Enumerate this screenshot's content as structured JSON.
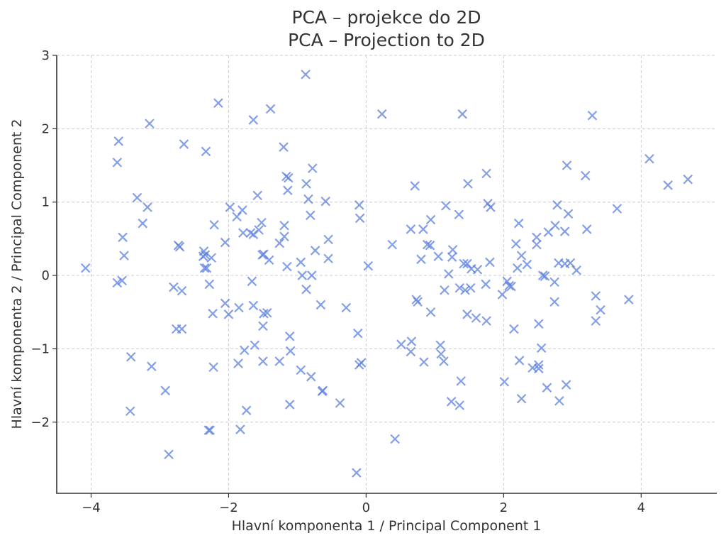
{
  "chart_data": {
    "type": "scatter",
    "title": "PCA – projekce do 2D",
    "subtitle": "PCA – Projection to 2D",
    "xlabel": "Hlavní komponenta 1 / Principal Component 1",
    "ylabel": "Hlavní komponenta 2 / Principal Component 2",
    "xlim": [
      -4.5,
      5.1
    ],
    "ylim": [
      -2.97,
      3.0
    ],
    "xticks": [
      -4,
      -2,
      0,
      2,
      4
    ],
    "yticks": [
      -2,
      -1,
      0,
      1,
      2,
      3
    ],
    "grid": true,
    "marker": "x",
    "color": "#5b7fde",
    "points": [
      [
        -4.08,
        0.1
      ],
      [
        -3.6,
        1.83
      ],
      [
        -3.62,
        1.54
      ],
      [
        -3.54,
        0.52
      ],
      [
        -3.52,
        0.27
      ],
      [
        -3.62,
        -0.1
      ],
      [
        -3.55,
        -0.07
      ],
      [
        -3.33,
        1.06
      ],
      [
        -3.25,
        0.71
      ],
      [
        -3.18,
        0.93
      ],
      [
        -3.15,
        2.07
      ],
      [
        -3.42,
        -1.11
      ],
      [
        -3.12,
        -1.24
      ],
      [
        -3.43,
        -1.85
      ],
      [
        -2.92,
        -1.57
      ],
      [
        -2.87,
        -2.44
      ],
      [
        -2.8,
        -0.16
      ],
      [
        -2.76,
        -0.73
      ],
      [
        -2.73,
        0.41
      ],
      [
        -2.71,
        0.39
      ],
      [
        -2.68,
        -0.21
      ],
      [
        -2.68,
        -0.73
      ],
      [
        -2.65,
        1.79
      ],
      [
        -2.33,
        1.69
      ],
      [
        -2.36,
        0.33
      ],
      [
        -2.34,
        0.28
      ],
      [
        -2.37,
        0.26
      ],
      [
        -2.35,
        0.1
      ],
      [
        -2.32,
        0.1
      ],
      [
        -2.25,
        0.24
      ],
      [
        -2.28,
        -0.12
      ],
      [
        -2.21,
        0.69
      ],
      [
        -2.23,
        -0.52
      ],
      [
        -2.22,
        -1.25
      ],
      [
        -2.29,
        -2.11
      ],
      [
        -2.27,
        -2.11
      ],
      [
        -2.15,
        2.35
      ],
      [
        -2.05,
        0.45
      ],
      [
        -2.05,
        -0.38
      ],
      [
        -2.0,
        -0.53
      ],
      [
        -1.98,
        0.93
      ],
      [
        -1.88,
        0.8
      ],
      [
        -1.85,
        -0.44
      ],
      [
        -1.86,
        -1.2
      ],
      [
        -1.83,
        -2.1
      ],
      [
        -1.8,
        0.89
      ],
      [
        -1.79,
        0.58
      ],
      [
        -1.77,
        -1.02
      ],
      [
        -1.74,
        -1.84
      ],
      [
        -1.68,
        0.58
      ],
      [
        -1.66,
        -0.08
      ],
      [
        -1.64,
        2.12
      ],
      [
        -1.64,
        0.56
      ],
      [
        -1.64,
        -0.41
      ],
      [
        -1.62,
        -0.95
      ],
      [
        -1.58,
        1.09
      ],
      [
        -1.56,
        0.62
      ],
      [
        -1.52,
        0.72
      ],
      [
        -1.51,
        0.28
      ],
      [
        -1.49,
        0.29
      ],
      [
        -1.5,
        -0.69
      ],
      [
        -1.49,
        -0.52
      ],
      [
        -1.44,
        -0.51
      ],
      [
        -1.5,
        -1.17
      ],
      [
        -1.41,
        0.21
      ],
      [
        -1.39,
        2.27
      ],
      [
        -1.26,
        0.44
      ],
      [
        -1.26,
        -1.17
      ],
      [
        -1.2,
        1.75
      ],
      [
        -1.19,
        0.68
      ],
      [
        -1.19,
        0.53
      ],
      [
        -1.16,
        1.35
      ],
      [
        -1.13,
        1.33
      ],
      [
        -1.14,
        1.16
      ],
      [
        -1.15,
        0.12
      ],
      [
        -1.11,
        -0.83
      ],
      [
        -1.1,
        -1.03
      ],
      [
        -1.11,
        -1.76
      ],
      [
        -0.95,
        0.18
      ],
      [
        -0.93,
        0.0
      ],
      [
        -0.95,
        -1.29
      ],
      [
        -0.88,
        2.74
      ],
      [
        -0.87,
        1.25
      ],
      [
        -0.87,
        -0.19
      ],
      [
        -0.84,
        1.04
      ],
      [
        -0.81,
        0.82
      ],
      [
        -0.78,
        1.46
      ],
      [
        -0.79,
        0.0
      ],
      [
        -0.8,
        -1.38
      ],
      [
        -0.74,
        0.34
      ],
      [
        -0.66,
        -0.4
      ],
      [
        -0.64,
        -1.58
      ],
      [
        -0.63,
        -1.57
      ],
      [
        -0.59,
        1.01
      ],
      [
        -0.55,
        0.49
      ],
      [
        -0.55,
        0.23
      ],
      [
        -0.38,
        -1.74
      ],
      [
        -0.29,
        -0.44
      ],
      [
        -0.14,
        -2.69
      ],
      [
        -0.12,
        -0.79
      ],
      [
        -0.1,
        0.96
      ],
      [
        -0.09,
        0.78
      ],
      [
        -0.1,
        -1.22
      ],
      [
        -0.07,
        -1.19
      ],
      [
        0.03,
        0.13
      ],
      [
        0.23,
        2.2
      ],
      [
        0.38,
        0.42
      ],
      [
        0.42,
        -2.23
      ],
      [
        0.51,
        -0.94
      ],
      [
        0.65,
        -1.04
      ],
      [
        0.65,
        0.63
      ],
      [
        0.66,
        -0.9
      ],
      [
        0.71,
        1.22
      ],
      [
        0.73,
        -0.33
      ],
      [
        0.75,
        -0.36
      ],
      [
        0.8,
        0.22
      ],
      [
        0.83,
        0.63
      ],
      [
        0.84,
        -1.18
      ],
      [
        0.89,
        0.42
      ],
      [
        0.93,
        0.41
      ],
      [
        0.94,
        0.76
      ],
      [
        0.94,
        -0.5
      ],
      [
        1.05,
        0.26
      ],
      [
        1.08,
        -0.95
      ],
      [
        1.09,
        -1.07
      ],
      [
        1.13,
        -1.17
      ],
      [
        1.14,
        -0.2
      ],
      [
        1.16,
        0.95
      ],
      [
        1.2,
        0.02
      ],
      [
        1.25,
        0.25
      ],
      [
        1.26,
        0.35
      ],
      [
        1.24,
        -1.72
      ],
      [
        1.36,
        -1.77
      ],
      [
        1.35,
        0.83
      ],
      [
        1.36,
        -0.17
      ],
      [
        1.38,
        -1.44
      ],
      [
        1.4,
        2.2
      ],
      [
        1.42,
        0.16
      ],
      [
        1.44,
        -0.2
      ],
      [
        1.47,
        0.16
      ],
      [
        1.47,
        -0.53
      ],
      [
        1.48,
        1.25
      ],
      [
        1.52,
        -0.17
      ],
      [
        1.53,
        0.09
      ],
      [
        1.6,
        -0.58
      ],
      [
        1.62,
        0.08
      ],
      [
        1.74,
        -0.12
      ],
      [
        1.75,
        -0.62
      ],
      [
        1.75,
        1.39
      ],
      [
        1.77,
        0.98
      ],
      [
        1.81,
        0.93
      ],
      [
        1.8,
        0.18
      ],
      [
        1.98,
        -0.26
      ],
      [
        2.01,
        -1.45
      ],
      [
        2.05,
        -0.08
      ],
      [
        2.08,
        -0.14
      ],
      [
        2.11,
        -0.15
      ],
      [
        2.15,
        -0.73
      ],
      [
        2.18,
        0.43
      ],
      [
        2.2,
        0.1
      ],
      [
        2.22,
        0.71
      ],
      [
        2.23,
        -1.16
      ],
      [
        2.26,
        -1.68
      ],
      [
        2.26,
        0.27
      ],
      [
        2.34,
        0.15
      ],
      [
        2.42,
        -1.26
      ],
      [
        2.48,
        0.52
      ],
      [
        2.48,
        0.42
      ],
      [
        2.51,
        -1.22
      ],
      [
        2.51,
        -1.27
      ],
      [
        2.51,
        -0.66
      ],
      [
        2.55,
        -0.99
      ],
      [
        2.57,
        0.0
      ],
      [
        2.6,
        -0.01
      ],
      [
        2.63,
        -1.53
      ],
      [
        2.65,
        0.59
      ],
      [
        2.74,
        -0.09
      ],
      [
        2.74,
        -0.36
      ],
      [
        2.75,
        0.68
      ],
      [
        2.78,
        0.96
      ],
      [
        2.8,
        0.17
      ],
      [
        2.81,
        -1.71
      ],
      [
        2.89,
        0.6
      ],
      [
        2.89,
        0.16
      ],
      [
        2.91,
        -1.49
      ],
      [
        2.92,
        1.5
      ],
      [
        2.94,
        0.84
      ],
      [
        2.97,
        0.17
      ],
      [
        3.06,
        0.07
      ],
      [
        3.19,
        1.36
      ],
      [
        3.21,
        0.63
      ],
      [
        3.29,
        2.18
      ],
      [
        3.34,
        -0.28
      ],
      [
        3.34,
        -0.62
      ],
      [
        3.41,
        -0.47
      ],
      [
        3.65,
        0.91
      ],
      [
        3.82,
        -0.33
      ],
      [
        4.12,
        1.59
      ],
      [
        4.39,
        1.23
      ],
      [
        4.68,
        1.31
      ]
    ]
  }
}
